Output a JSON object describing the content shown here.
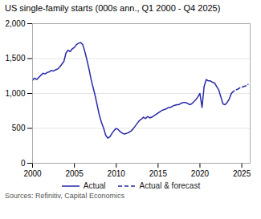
{
  "chart_data": {
    "type": "line",
    "title": "US single-family starts (000s ann., Q1 2000 - Q4 2025)",
    "caption": "Sources: Refinitiv, Capital Economics",
    "xlim": [
      2000,
      2026
    ],
    "ylim": [
      0,
      2000
    ],
    "xticks": [
      2000,
      2005,
      2010,
      2015,
      2020,
      2025
    ],
    "yticks": [
      0,
      500,
      {
        "value": 1000,
        "label": "1,000"
      },
      {
        "value": 1500,
        "label": "1,500"
      },
      {
        "value": 2000,
        "label": "2,000"
      }
    ],
    "grid": true,
    "legend": "bottom",
    "series": [
      {
        "name": "Actual",
        "color": "#2929a8",
        "line_style": "solid",
        "x": [
          2000.0,
          2000.25,
          2000.5,
          2000.75,
          2001.0,
          2001.25,
          2001.5,
          2001.75,
          2002.0,
          2002.25,
          2002.5,
          2002.75,
          2003.0,
          2003.25,
          2003.5,
          2003.75,
          2004.0,
          2004.25,
          2004.5,
          2004.75,
          2005.0,
          2005.25,
          2005.5,
          2005.75,
          2006.0,
          2006.25,
          2006.5,
          2006.75,
          2007.0,
          2007.25,
          2007.5,
          2007.75,
          2008.0,
          2008.25,
          2008.5,
          2008.75,
          2009.0,
          2009.25,
          2009.5,
          2009.75,
          2010.0,
          2010.25,
          2010.5,
          2010.75,
          2011.0,
          2011.25,
          2011.5,
          2011.75,
          2012.0,
          2012.25,
          2012.5,
          2012.75,
          2013.0,
          2013.25,
          2013.5,
          2013.75,
          2014.0,
          2014.25,
          2014.5,
          2014.75,
          2015.0,
          2015.25,
          2015.5,
          2015.75,
          2016.0,
          2016.25,
          2016.5,
          2016.75,
          2017.0,
          2017.25,
          2017.5,
          2017.75,
          2018.0,
          2018.25,
          2018.5,
          2018.75,
          2019.0,
          2019.25,
          2019.5,
          2019.75,
          2020.0,
          2020.25,
          2020.5,
          2020.75,
          2021.0,
          2021.25,
          2021.5,
          2021.75,
          2022.0,
          2022.25,
          2022.5,
          2022.75,
          2023.0,
          2023.25,
          2023.5,
          2023.75
        ],
        "values": [
          1190,
          1220,
          1200,
          1230,
          1260,
          1290,
          1280,
          1300,
          1310,
          1330,
          1320,
          1340,
          1350,
          1380,
          1420,
          1460,
          1580,
          1620,
          1600,
          1640,
          1660,
          1700,
          1720,
          1730,
          1700,
          1600,
          1480,
          1350,
          1200,
          1080,
          960,
          820,
          680,
          580,
          500,
          400,
          360,
          380,
          430,
          470,
          500,
          480,
          450,
          430,
          420,
          430,
          440,
          460,
          490,
          530,
          570,
          610,
          630,
          660,
          640,
          670,
          650,
          660,
          680,
          700,
          720,
          740,
          760,
          770,
          780,
          800,
          800,
          820,
          830,
          840,
          840,
          860,
          870,
          870,
          860,
          840,
          850,
          880,
          910,
          950,
          1000,
          800,
          1100,
          1200,
          1180,
          1180,
          1160,
          1150,
          1100,
          1050,
          950,
          850,
          840,
          870,
          920,
          1000
        ]
      },
      {
        "name": "Actual & forecast",
        "color": "#2929a8",
        "line_style": "dashed",
        "x": [
          2023.75,
          2024.0,
          2024.25,
          2024.5,
          2024.75,
          2025.0,
          2025.25,
          2025.5,
          2025.75
        ],
        "values": [
          1000,
          1030,
          1050,
          1060,
          1080,
          1090,
          1100,
          1110,
          1130
        ]
      }
    ]
  }
}
